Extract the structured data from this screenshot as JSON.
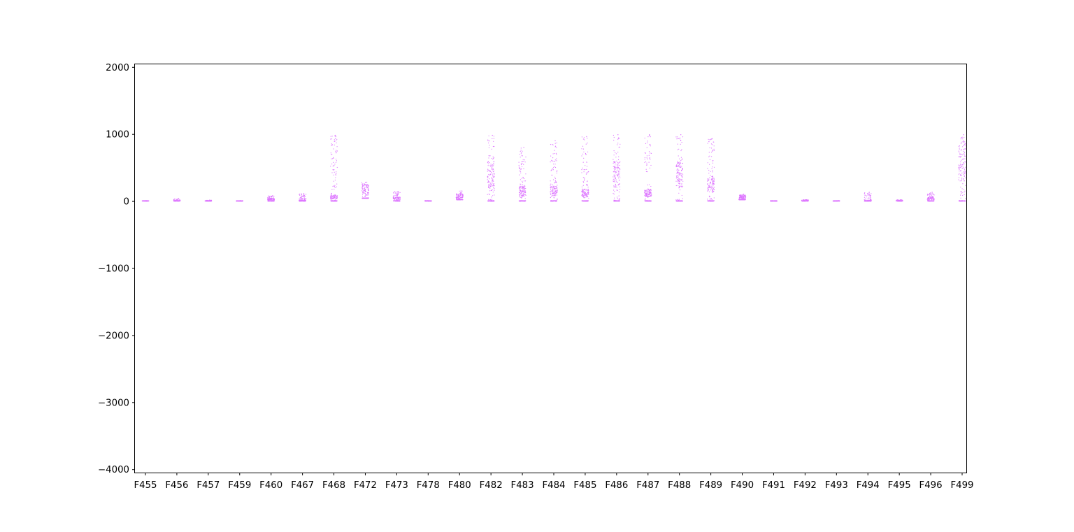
{
  "chart_data": {
    "type": "scatter",
    "style": "strip",
    "title": "",
    "xlabel": "",
    "ylabel": "",
    "ylim": [
      -4050,
      2050
    ],
    "yticks": [
      2000,
      1000,
      0,
      -1000,
      -2000,
      -3000,
      -4000
    ],
    "ytick_labels": [
      "2000",
      "1000",
      "0",
      "−1000",
      "−2000",
      "−3000",
      "−4000"
    ],
    "grid": false,
    "legend": "none",
    "marker_color": "#dd77ff",
    "categories": [
      "F455",
      "F456",
      "F457",
      "F459",
      "F460",
      "F467",
      "F468",
      "F472",
      "F473",
      "F478",
      "F480",
      "F482",
      "F483",
      "F484",
      "F485",
      "F486",
      "F487",
      "F488",
      "F489",
      "F490",
      "F491",
      "F492",
      "F493",
      "F494",
      "F495",
      "F496",
      "F499"
    ],
    "groups": [
      {
        "category": "F455",
        "min": 0,
        "max": 5,
        "typical": 2
      },
      {
        "category": "F456",
        "min": 0,
        "max": 40,
        "typical": 15
      },
      {
        "category": "F457",
        "min": 0,
        "max": 15,
        "typical": 5
      },
      {
        "category": "F459",
        "min": 0,
        "max": 5,
        "typical": 1
      },
      {
        "category": "F460",
        "min": 0,
        "max": 80,
        "typical": 30
      },
      {
        "category": "F467",
        "min": 0,
        "max": 110,
        "typical": 10
      },
      {
        "category": "F468",
        "min": 0,
        "max": 980,
        "typical": 60
      },
      {
        "category": "F472",
        "min": 40,
        "max": 280,
        "typical": 160
      },
      {
        "category": "F473",
        "min": 0,
        "max": 140,
        "typical": 40
      },
      {
        "category": "F478",
        "min": 0,
        "max": 5,
        "typical": 1
      },
      {
        "category": "F480",
        "min": 20,
        "max": 150,
        "typical": 70
      },
      {
        "category": "F482",
        "min": 0,
        "max": 980,
        "typical": 400
      },
      {
        "category": "F483",
        "min": 0,
        "max": 800,
        "typical": 150
      },
      {
        "category": "F484",
        "min": 0,
        "max": 900,
        "typical": 150
      },
      {
        "category": "F485",
        "min": 0,
        "max": 960,
        "typical": 120
      },
      {
        "category": "F486",
        "min": 0,
        "max": 990,
        "typical": 400
      },
      {
        "category": "F487",
        "min": 0,
        "max": 990,
        "typical": 120
      },
      {
        "category": "F488",
        "min": 0,
        "max": 990,
        "typical": 400
      },
      {
        "category": "F489",
        "min": 0,
        "max": 930,
        "typical": 250
      },
      {
        "category": "F490",
        "min": 20,
        "max": 100,
        "typical": 60
      },
      {
        "category": "F491",
        "min": 0,
        "max": 5,
        "typical": 1
      },
      {
        "category": "F492",
        "min": 0,
        "max": 20,
        "typical": 10
      },
      {
        "category": "F493",
        "min": 0,
        "max": 5,
        "typical": 1
      },
      {
        "category": "F494",
        "min": 0,
        "max": 130,
        "typical": 3
      },
      {
        "category": "F495",
        "min": 0,
        "max": 20,
        "typical": 8
      },
      {
        "category": "F496",
        "min": 0,
        "max": 130,
        "typical": 40
      },
      {
        "category": "F499",
        "min": 0,
        "max": 990,
        "typical": 600
      }
    ]
  }
}
